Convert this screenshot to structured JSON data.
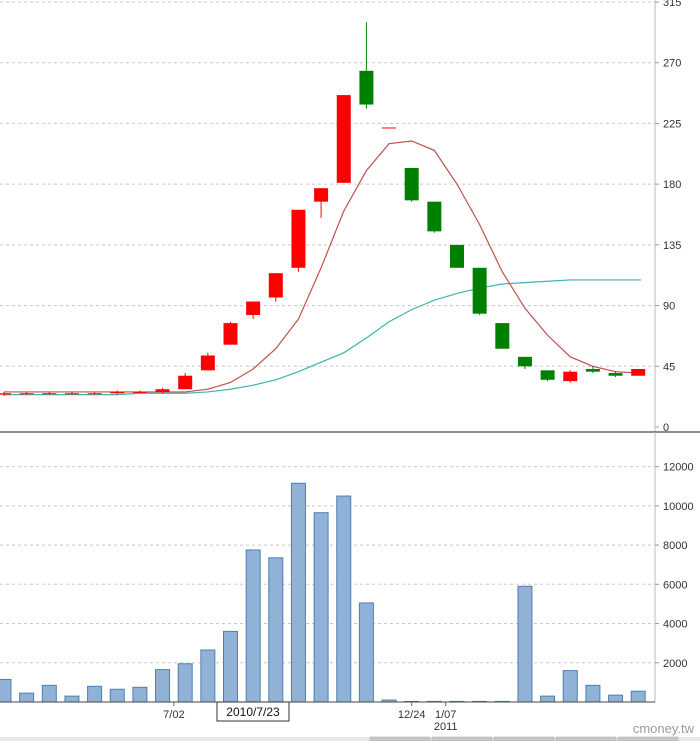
{
  "chart_data": [
    {
      "type": "candlestick",
      "panel": "price",
      "ylim": [
        0,
        315
      ],
      "yticks": [
        0,
        45,
        90,
        135,
        180,
        225,
        270,
        315
      ],
      "grid": true,
      "colors": {
        "up": "#ff0000",
        "down": "#008000",
        "ma_short": "#c0504d",
        "ma_long": "#3cb3b0"
      },
      "candles": [
        {
          "o": 24,
          "h": 26,
          "l": 23,
          "c": 25
        },
        {
          "o": 25,
          "h": 26,
          "l": 24,
          "c": 25
        },
        {
          "o": 25,
          "h": 26,
          "l": 24,
          "c": 25
        },
        {
          "o": 25,
          "h": 26,
          "l": 24,
          "c": 25
        },
        {
          "o": 25,
          "h": 26,
          "l": 24,
          "c": 25
        },
        {
          "o": 25,
          "h": 27,
          "l": 24,
          "c": 26
        },
        {
          "o": 26,
          "h": 27,
          "l": 25,
          "c": 26
        },
        {
          "o": 26,
          "h": 29,
          "l": 25,
          "c": 28
        },
        {
          "o": 28,
          "h": 40,
          "l": 28,
          "c": 38
        },
        {
          "o": 42,
          "h": 55,
          "l": 42,
          "c": 53
        },
        {
          "o": 61,
          "h": 78,
          "l": 61,
          "c": 77
        },
        {
          "o": 83,
          "h": 93,
          "l": 80,
          "c": 93
        },
        {
          "o": 96,
          "h": 114,
          "l": 93,
          "c": 114
        },
        {
          "o": 118,
          "h": 161,
          "l": 115,
          "c": 161
        },
        {
          "o": 167,
          "h": 177,
          "l": 155,
          "c": 177
        },
        {
          "o": 181,
          "h": 246,
          "l": 181,
          "c": 246
        },
        {
          "o": 264,
          "h": 300,
          "l": 236,
          "c": 239
        },
        {
          "o": 222,
          "h": 222,
          "l": 222,
          "c": 222
        },
        {
          "o": 192,
          "h": 192,
          "l": 167,
          "c": 168
        },
        {
          "o": 167,
          "h": 167,
          "l": 144,
          "c": 145
        },
        {
          "o": 135,
          "h": 135,
          "l": 118,
          "c": 118
        },
        {
          "o": 118,
          "h": 118,
          "l": 83,
          "c": 84
        },
        {
          "o": 77,
          "h": 77,
          "l": 58,
          "c": 58
        },
        {
          "o": 52,
          "h": 52,
          "l": 43,
          "c": 45
        },
        {
          "o": 42,
          "h": 42,
          "l": 34,
          "c": 35
        },
        {
          "o": 34,
          "h": 42,
          "l": 33,
          "c": 41
        },
        {
          "o": 43,
          "h": 45,
          "l": 40,
          "c": 41
        },
        {
          "o": 40,
          "h": 41,
          "l": 37,
          "c": 38
        },
        {
          "o": 38,
          "h": 43,
          "l": 38,
          "c": 43
        }
      ],
      "ma_short": [
        26,
        26,
        26,
        26,
        26,
        26,
        26,
        26,
        26,
        28,
        33,
        43,
        58,
        80,
        118,
        160,
        190,
        210,
        212,
        205,
        180,
        150,
        115,
        88,
        68,
        52,
        45,
        41,
        40
      ],
      "ma_long": [
        24,
        24,
        24,
        24,
        24,
        24,
        25,
        25,
        25,
        26,
        28,
        31,
        35,
        41,
        48,
        55,
        66,
        78,
        87,
        94,
        99,
        103,
        106,
        107,
        108,
        109,
        109,
        109,
        109
      ]
    },
    {
      "type": "bar",
      "panel": "volume",
      "ylim": [
        0,
        13000
      ],
      "yticks": [
        2000,
        4000,
        6000,
        8000,
        10000,
        12000
      ],
      "grid": true,
      "colors": {
        "bar_fill": "#8fb2d6",
        "bar_stroke": "#4f7fb0"
      },
      "values": [
        1150,
        450,
        850,
        300,
        800,
        650,
        750,
        1650,
        1950,
        2650,
        3600,
        7750,
        7350,
        11150,
        9650,
        10500,
        5050,
        100,
        30,
        30,
        30,
        30,
        30,
        5900,
        300,
        1600,
        850,
        350,
        550
      ],
      "xticks": [
        {
          "index": 7.5,
          "label": "7/02"
        },
        {
          "index": 18,
          "label": "12/24"
        },
        {
          "index": 19.5,
          "label": "1/07"
        },
        {
          "index": 19.5,
          "label": "2011",
          "row": 2
        }
      ],
      "cursor_date": "2010/7/23"
    }
  ],
  "watermark": "cmoney.tw"
}
